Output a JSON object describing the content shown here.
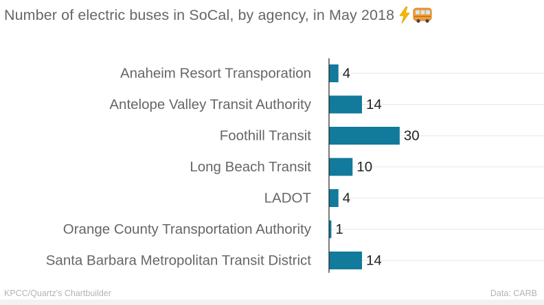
{
  "title": "Number of electric buses in SoCal, by agency, in May 2018",
  "title_emoji": [
    "lightning-icon",
    "bus-icon"
  ],
  "footer": {
    "credit": "KPCC/Quartz's Chartbuilder",
    "source": "Data: CARB"
  },
  "colors": {
    "bar": "#127a9a",
    "grid": "#e6e6e6",
    "axis": "#222222",
    "label": "#666666"
  },
  "chart_data": {
    "type": "bar",
    "orientation": "horizontal",
    "categories": [
      "Anaheim Resort Transporation",
      "Antelope Valley Transit Authority",
      "Foothill Transit",
      "Long Beach Transit",
      "LADOT",
      "Orange County Transportation Authority",
      "Santa Barbara Metropolitan Transit District"
    ],
    "values": [
      4,
      14,
      30,
      10,
      4,
      1,
      14
    ],
    "title": "Number of electric buses in SoCal, by agency, in May 2018",
    "xlabel": "",
    "ylabel": "",
    "xlim": [
      0,
      90
    ],
    "grid": true,
    "data_labels": true
  }
}
